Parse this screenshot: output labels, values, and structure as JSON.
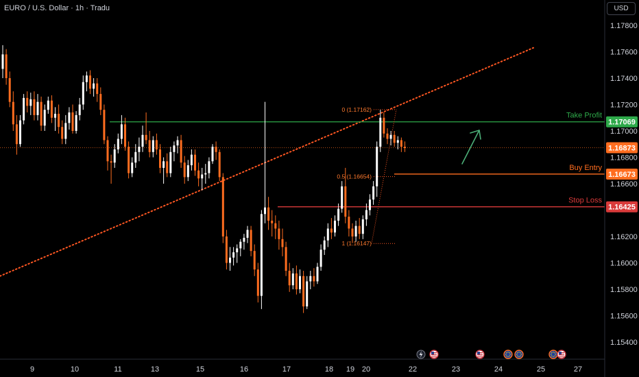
{
  "header": {
    "title": "EURO / U.S. Dollar · 1h · Tradu",
    "currency_button": "USD"
  },
  "colors": {
    "background": "#000000",
    "bull_candle": "#ffffff",
    "bear_candle": "#ff6d1f",
    "trendline": "#ff5722",
    "take_profit": "#2eaa4a",
    "buy_entry": "#ff6d1f",
    "stop_loss": "#d93a3a",
    "price_tag": "#ff6d1f",
    "arrow": "#4caf78",
    "axis_text": "#d1d4dc"
  },
  "chart_data": {
    "type": "candlestick",
    "symbol": "EURO / U.S. Dollar",
    "interval": "1h",
    "ylim": [
      1.153,
      1.18
    ],
    "y_ticks": [
      "1.17800",
      "1.17600",
      "1.17400",
      "1.17200",
      "1.17000",
      "1.16800",
      "1.16600",
      "1.16200",
      "1.16000",
      "1.15800",
      "1.15600",
      "1.15400"
    ],
    "x_ticks": [
      "9",
      "10",
      "11",
      "13",
      "15",
      "16",
      "17",
      "18",
      "19",
      "20",
      "22",
      "23",
      "24",
      "25",
      "27"
    ],
    "levels": [
      {
        "name": "Take Profit",
        "value": "1.17069"
      },
      {
        "name": "Buy Entry",
        "value": "1.16673"
      },
      {
        "name": "Stop Loss",
        "value": "1.16425"
      }
    ],
    "current_price": "1.16873",
    "fibonacci": [
      {
        "label": "0 (1.17162)",
        "value": 1.17162
      },
      {
        "label": "0.5 (1.16654)",
        "value": 1.16654
      },
      {
        "label": "1 (1.16147)",
        "value": 1.16147
      }
    ],
    "trendline": {
      "start": 1.159,
      "end": 1.1763
    },
    "candles_ohlc": [
      [
        1.1747,
        1.1765,
        1.174,
        1.1758
      ],
      [
        1.1758,
        1.1762,
        1.1735,
        1.174
      ],
      [
        1.174,
        1.1745,
        1.1718,
        1.1722
      ],
      [
        1.1722,
        1.173,
        1.17,
        1.1705
      ],
      [
        1.1705,
        1.1712,
        1.1682,
        1.169
      ],
      [
        1.169,
        1.1712,
        1.1688,
        1.1708
      ],
      [
        1.1708,
        1.1728,
        1.1705,
        1.1725
      ],
      [
        1.1725,
        1.173,
        1.1714,
        1.1719
      ],
      [
        1.1719,
        1.1729,
        1.1712,
        1.1724
      ],
      [
        1.1724,
        1.173,
        1.1708,
        1.1712
      ],
      [
        1.1712,
        1.1728,
        1.1708,
        1.1722
      ],
      [
        1.1722,
        1.1726,
        1.17,
        1.1704
      ],
      [
        1.1704,
        1.172,
        1.17,
        1.1716
      ],
      [
        1.1716,
        1.1726,
        1.1713,
        1.1723
      ],
      [
        1.1723,
        1.1727,
        1.1706,
        1.171
      ],
      [
        1.171,
        1.1718,
        1.17,
        1.1713
      ],
      [
        1.1713,
        1.172,
        1.1698,
        1.1703
      ],
      [
        1.1703,
        1.1708,
        1.169,
        1.1694
      ],
      [
        1.1694,
        1.1712,
        1.169,
        1.1706
      ],
      [
        1.1706,
        1.1718,
        1.1701,
        1.1714
      ],
      [
        1.1714,
        1.172,
        1.1698,
        1.17
      ],
      [
        1.17,
        1.1715,
        1.1698,
        1.1712
      ],
      [
        1.1712,
        1.1725,
        1.1708,
        1.172
      ],
      [
        1.172,
        1.1742,
        1.1716,
        1.1737
      ],
      [
        1.1737,
        1.1745,
        1.173,
        1.1742
      ],
      [
        1.1742,
        1.1746,
        1.1728,
        1.1732
      ],
      [
        1.1732,
        1.174,
        1.1726,
        1.1736
      ],
      [
        1.1736,
        1.174,
        1.1722,
        1.1728
      ],
      [
        1.1728,
        1.1733,
        1.1712,
        1.1716
      ],
      [
        1.1716,
        1.172,
        1.169,
        1.1693
      ],
      [
        1.1693,
        1.1696,
        1.167,
        1.1677
      ],
      [
        1.1677,
        1.1682,
        1.166,
        1.1676
      ],
      [
        1.1676,
        1.169,
        1.1672,
        1.1686
      ],
      [
        1.1686,
        1.1698,
        1.1683,
        1.1694
      ],
      [
        1.1694,
        1.1712,
        1.169,
        1.1705
      ],
      [
        1.1705,
        1.171,
        1.1685,
        1.1688
      ],
      [
        1.1688,
        1.1692,
        1.1664,
        1.1668
      ],
      [
        1.1668,
        1.168,
        1.1665,
        1.1676
      ],
      [
        1.1676,
        1.169,
        1.1672,
        1.1684
      ],
      [
        1.1684,
        1.1695,
        1.1677,
        1.1688
      ],
      [
        1.1688,
        1.1704,
        1.1684,
        1.1697
      ],
      [
        1.1697,
        1.1714,
        1.169,
        1.1693
      ],
      [
        1.1693,
        1.17,
        1.168,
        1.1684
      ],
      [
        1.1684,
        1.1696,
        1.168,
        1.1693
      ],
      [
        1.1693,
        1.1698,
        1.1682,
        1.1686
      ],
      [
        1.1686,
        1.169,
        1.1668,
        1.1672
      ],
      [
        1.1672,
        1.168,
        1.166,
        1.1677
      ],
      [
        1.1677,
        1.1683,
        1.1665,
        1.1668
      ],
      [
        1.1668,
        1.1688,
        1.1665,
        1.1684
      ],
      [
        1.1684,
        1.1692,
        1.1677,
        1.1689
      ],
      [
        1.1689,
        1.1696,
        1.1683,
        1.1693
      ],
      [
        1.1693,
        1.1697,
        1.1672,
        1.1676
      ],
      [
        1.1676,
        1.1681,
        1.166,
        1.1665
      ],
      [
        1.1665,
        1.1678,
        1.1662,
        1.1674
      ],
      [
        1.1674,
        1.1686,
        1.167,
        1.1682
      ],
      [
        1.1682,
        1.1686,
        1.1666,
        1.167
      ],
      [
        1.167,
        1.1676,
        1.1658,
        1.1664
      ],
      [
        1.1664,
        1.1672,
        1.1655,
        1.1667
      ],
      [
        1.1667,
        1.1675,
        1.166,
        1.1668
      ],
      [
        1.1668,
        1.168,
        1.1664,
        1.1677
      ],
      [
        1.1677,
        1.169,
        1.1675,
        1.1688
      ],
      [
        1.1688,
        1.1692,
        1.1678,
        1.1684
      ],
      [
        1.1684,
        1.1686,
        1.1662,
        1.1665
      ],
      [
        1.1665,
        1.1668,
        1.1615,
        1.162
      ],
      [
        1.162,
        1.1625,
        1.1595,
        1.16
      ],
      [
        1.16,
        1.1612,
        1.1594,
        1.1604
      ],
      [
        1.1604,
        1.1612,
        1.1598,
        1.1608
      ],
      [
        1.1608,
        1.1614,
        1.16,
        1.1611
      ],
      [
        1.1611,
        1.1618,
        1.1605,
        1.1616
      ],
      [
        1.1616,
        1.1622,
        1.161,
        1.1619
      ],
      [
        1.1619,
        1.1628,
        1.1615,
        1.1625
      ],
      [
        1.1625,
        1.1628,
        1.1605,
        1.1609
      ],
      [
        1.1609,
        1.1614,
        1.159,
        1.1595
      ],
      [
        1.1595,
        1.16,
        1.157,
        1.1575
      ],
      [
        1.1575,
        1.164,
        1.1565,
        1.1637
      ],
      [
        1.1637,
        1.1722,
        1.163,
        1.1642
      ],
      [
        1.1642,
        1.165,
        1.1625,
        1.1632
      ],
      [
        1.1632,
        1.164,
        1.162,
        1.163
      ],
      [
        1.163,
        1.1636,
        1.1618,
        1.1626
      ],
      [
        1.1626,
        1.1632,
        1.161,
        1.1618
      ],
      [
        1.1618,
        1.1626,
        1.1605,
        1.1612
      ],
      [
        1.1612,
        1.1616,
        1.159,
        1.1594
      ],
      [
        1.1594,
        1.16,
        1.1578,
        1.1583
      ],
      [
        1.1583,
        1.1596,
        1.158,
        1.1592
      ],
      [
        1.1592,
        1.1598,
        1.1576,
        1.158
      ],
      [
        1.158,
        1.1595,
        1.1577,
        1.159
      ],
      [
        1.159,
        1.1594,
        1.1562,
        1.1567
      ],
      [
        1.1567,
        1.159,
        1.1565,
        1.1586
      ],
      [
        1.1586,
        1.1594,
        1.158,
        1.159
      ],
      [
        1.159,
        1.1596,
        1.1582,
        1.1586
      ],
      [
        1.1586,
        1.16,
        1.1584,
        1.1597
      ],
      [
        1.1597,
        1.1614,
        1.1594,
        1.161
      ],
      [
        1.161,
        1.162,
        1.1606,
        1.1617
      ],
      [
        1.1617,
        1.163,
        1.1612,
        1.1626
      ],
      [
        1.1626,
        1.1634,
        1.1618,
        1.1623
      ],
      [
        1.1623,
        1.1636,
        1.162,
        1.1632
      ],
      [
        1.1632,
        1.1645,
        1.1628,
        1.1641
      ],
      [
        1.1641,
        1.1662,
        1.1638,
        1.1658
      ],
      [
        1.1658,
        1.1672,
        1.163,
        1.1635
      ],
      [
        1.1635,
        1.164,
        1.162,
        1.1626
      ],
      [
        1.1626,
        1.163,
        1.1615,
        1.162
      ],
      [
        1.162,
        1.1632,
        1.1616,
        1.1628
      ],
      [
        1.1628,
        1.1634,
        1.1618,
        1.1622
      ],
      [
        1.1622,
        1.1636,
        1.1618,
        1.1633
      ],
      [
        1.1633,
        1.1645,
        1.1628,
        1.164
      ],
      [
        1.164,
        1.1652,
        1.1636,
        1.1648
      ],
      [
        1.1648,
        1.1662,
        1.1644,
        1.1658
      ],
      [
        1.1658,
        1.1692,
        1.165,
        1.1688
      ],
      [
        1.1688,
        1.1716,
        1.1684,
        1.171
      ],
      [
        1.171,
        1.1714,
        1.1695,
        1.1698
      ],
      [
        1.1698,
        1.1702,
        1.169,
        1.1694
      ],
      [
        1.1694,
        1.17,
        1.1689,
        1.1697
      ],
      [
        1.1697,
        1.17,
        1.1688,
        1.1691
      ],
      [
        1.1691,
        1.1696,
        1.1686,
        1.1693
      ],
      [
        1.1693,
        1.1695,
        1.1684,
        1.1688
      ],
      [
        1.1688,
        1.1692,
        1.1684,
        1.1687
      ]
    ]
  }
}
